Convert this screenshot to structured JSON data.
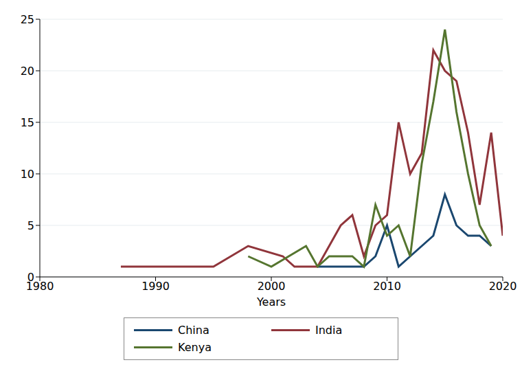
{
  "chart_data": {
    "type": "line",
    "x_label": "Years",
    "xlim": [
      1980,
      2020
    ],
    "xticks": [
      1980,
      1990,
      2000,
      2010,
      2020
    ],
    "ylim": [
      0,
      25
    ],
    "yticks": [
      0,
      5,
      10,
      15,
      20,
      25
    ],
    "grid": true,
    "legend": "bottom",
    "series": [
      {
        "name": "China",
        "color": "#1a476f",
        "x": [
          2004,
          2008,
          2009,
          2010,
          2011,
          2012,
          2013,
          2014,
          2015,
          2016,
          2017,
          2018,
          2019
        ],
        "values": [
          1,
          1,
          2,
          5,
          1,
          2,
          3,
          4,
          8,
          5,
          4,
          4,
          3
        ]
      },
      {
        "name": "India",
        "color": "#90353b",
        "x": [
          1987,
          1995,
          1998,
          2001,
          2002,
          2003,
          2004,
          2006,
          2007,
          2008,
          2009,
          2010,
          2011,
          2012,
          2013,
          2014,
          2015,
          2016,
          2017,
          2018,
          2019,
          2020
        ],
        "values": [
          1,
          1,
          3,
          2,
          1,
          1,
          1,
          5,
          6,
          2,
          5,
          6,
          15,
          10,
          12,
          22,
          20,
          19,
          14,
          7,
          14,
          4
        ]
      },
      {
        "name": "Kenya",
        "color": "#55752f",
        "x": [
          1998,
          2000,
          2003,
          2004,
          2005,
          2007,
          2008,
          2009,
          2010,
          2011,
          2012,
          2013,
          2014,
          2015,
          2016,
          2017,
          2018,
          2019
        ],
        "values": [
          2,
          1,
          3,
          1,
          2,
          2,
          1,
          7,
          4,
          5,
          2,
          11,
          17,
          24,
          16,
          10,
          5,
          3
        ]
      }
    ]
  }
}
